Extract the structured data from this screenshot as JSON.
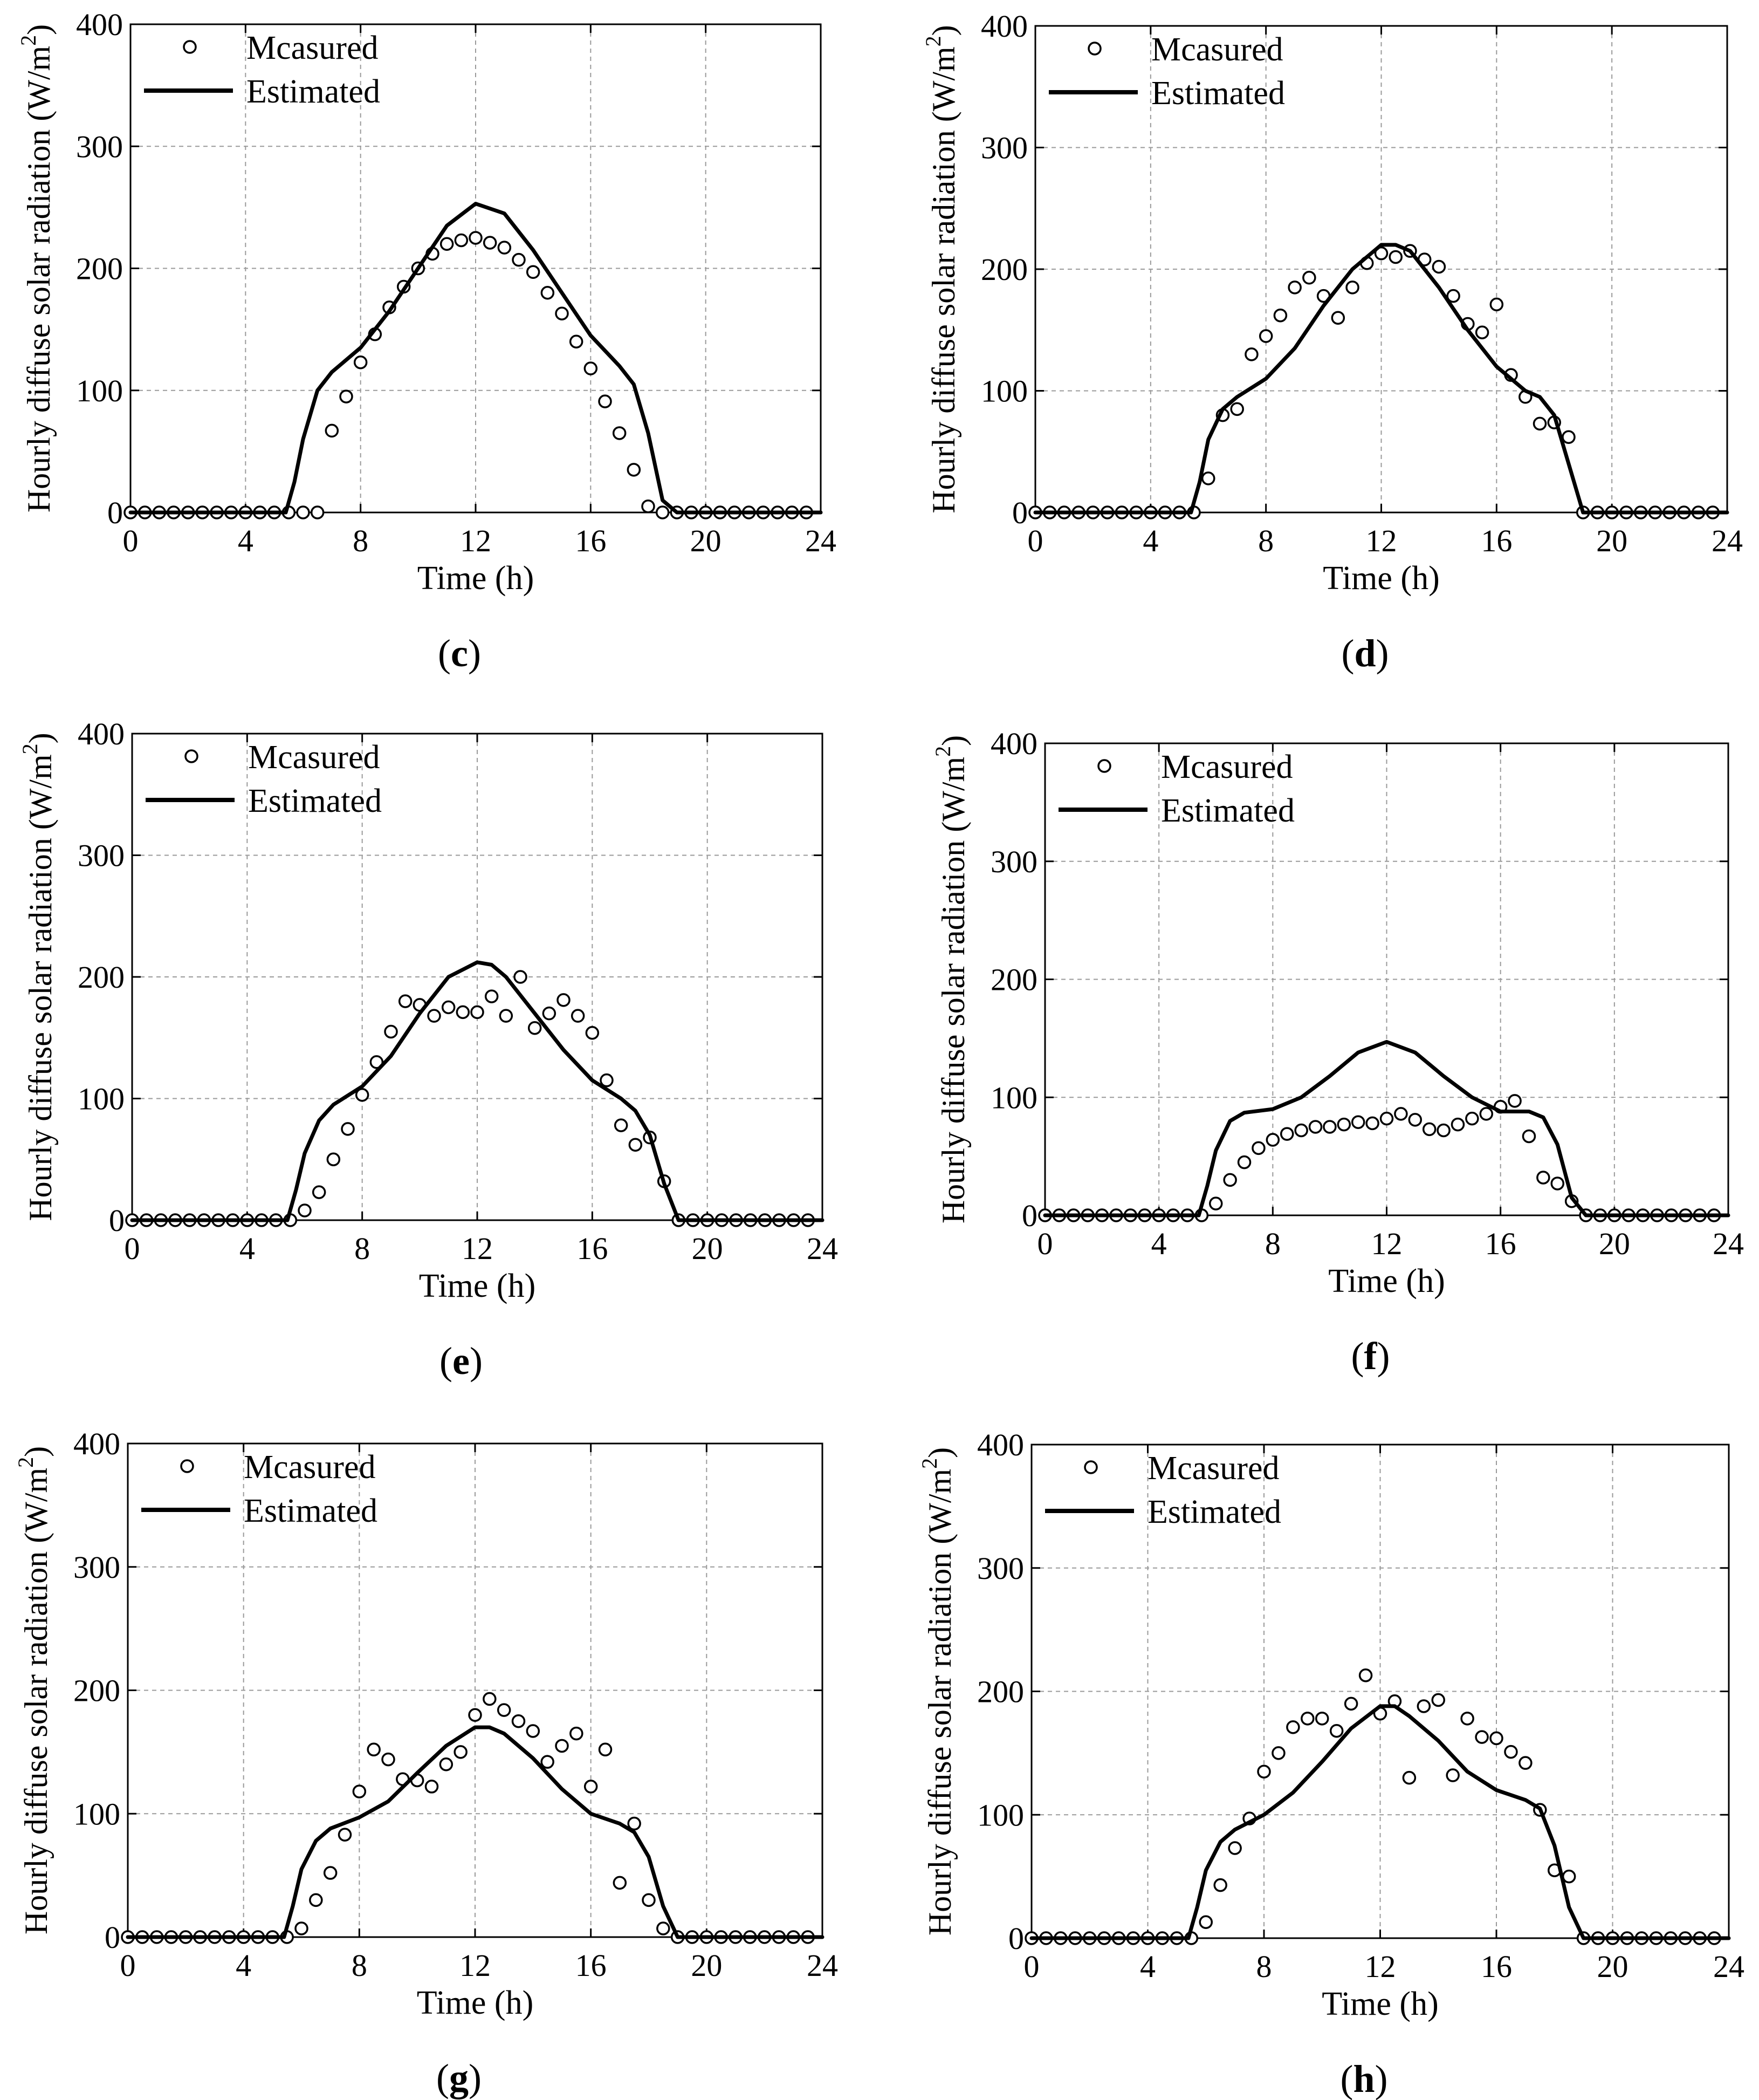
{
  "figure": {
    "legend_measured": "Mcasured",
    "legend_estimated": "Estimated",
    "xlabel": "Time (h)",
    "ylabel": "Hourly diffuse solar radiation (W/m",
    "ylabel_sup": "2",
    "ylabel_close": ")"
  },
  "chart_data": [
    {
      "panel": "c",
      "label": "(c)",
      "type": "scatter+line",
      "xlabel": "Time (h)",
      "ylabel": "Hourly diffuse solar radiation (W/m2)",
      "xlim": [
        0,
        24
      ],
      "ylim": [
        0,
        400
      ],
      "grid": true,
      "legend": "top-left",
      "x_ticks": [
        0,
        4,
        8,
        12,
        16,
        20,
        24
      ],
      "y_ticks": [
        0,
        100,
        200,
        300,
        400
      ],
      "series": [
        {
          "name": "Mcasured",
          "style": "open-circle",
          "x": [
            0,
            0.5,
            1,
            1.5,
            2,
            2.5,
            3,
            3.5,
            4,
            4.5,
            5,
            5.5,
            6,
            6.5,
            7,
            7.5,
            8,
            8.5,
            9,
            9.5,
            10,
            10.5,
            11,
            11.5,
            12,
            12.5,
            13,
            13.5,
            14,
            14.5,
            15,
            15.5,
            16,
            16.5,
            17,
            17.5,
            18,
            18.5,
            19,
            19.5,
            20,
            20.5,
            21,
            21.5,
            22,
            22.5,
            23,
            23.5
          ],
          "y": [
            0,
            0,
            0,
            0,
            0,
            0,
            0,
            0,
            0,
            0,
            0,
            0,
            0,
            0,
            67,
            95,
            123,
            146,
            168,
            185,
            200,
            212,
            220,
            223,
            225,
            221,
            217,
            207,
            197,
            180,
            163,
            140,
            118,
            91,
            65,
            35,
            5,
            0,
            0,
            0,
            0,
            0,
            0,
            0,
            0,
            0,
            0,
            0
          ]
        },
        {
          "name": "Estimated",
          "style": "solid-line",
          "x": [
            0,
            5.4,
            5.7,
            6,
            6.5,
            7,
            8,
            9,
            10,
            11,
            12,
            13,
            14,
            15,
            16,
            17,
            17.5,
            18,
            18.5,
            19,
            24
          ],
          "y": [
            0,
            0,
            25,
            60,
            100,
            115,
            135,
            165,
            200,
            235,
            253,
            245,
            215,
            180,
            145,
            120,
            105,
            65,
            10,
            0,
            0
          ]
        }
      ]
    },
    {
      "panel": "d",
      "label": "(d)",
      "type": "scatter+line",
      "xlabel": "Time (h)",
      "ylabel": "Hourly diffuse solar radiation (W/m2)",
      "xlim": [
        0,
        24
      ],
      "ylim": [
        0,
        400
      ],
      "grid": true,
      "legend": "top-left",
      "x_ticks": [
        0,
        4,
        8,
        12,
        16,
        20,
        24
      ],
      "y_ticks": [
        0,
        100,
        200,
        300,
        400
      ],
      "series": [
        {
          "name": "Mcasured",
          "style": "open-circle",
          "x": [
            0,
            0.5,
            1,
            1.5,
            2,
            2.5,
            3,
            3.5,
            4,
            4.5,
            5,
            5.5,
            6,
            6.5,
            7,
            7.5,
            8,
            8.5,
            9,
            9.5,
            10,
            10.5,
            11,
            11.5,
            12,
            12.5,
            13,
            13.5,
            14,
            14.5,
            15,
            15.5,
            16,
            16.5,
            17,
            17.5,
            18,
            18.5,
            19,
            19.5,
            20,
            20.5,
            21,
            21.5,
            22,
            22.5,
            23,
            23.5
          ],
          "y": [
            0,
            0,
            0,
            0,
            0,
            0,
            0,
            0,
            0,
            0,
            0,
            0,
            28,
            80,
            85,
            130,
            145,
            162,
            185,
            193,
            178,
            160,
            185,
            205,
            213,
            210,
            215,
            208,
            202,
            178,
            155,
            148,
            171,
            113,
            95,
            73,
            74,
            62,
            0,
            0,
            0,
            0,
            0,
            0,
            0,
            0,
            0,
            0
          ]
        },
        {
          "name": "Estimated",
          "style": "solid-line",
          "x": [
            0,
            5.4,
            5.7,
            6,
            6.5,
            7,
            8,
            9,
            10,
            11,
            12,
            12.5,
            13,
            14,
            15,
            16,
            17,
            17.5,
            18,
            18.5,
            19,
            24
          ],
          "y": [
            0,
            0,
            25,
            60,
            85,
            95,
            110,
            135,
            170,
            200,
            220,
            220,
            215,
            185,
            150,
            120,
            100,
            95,
            80,
            40,
            0,
            0
          ]
        }
      ]
    },
    {
      "panel": "e",
      "label": "(e)",
      "type": "scatter+line",
      "xlabel": "Time (h)",
      "ylabel": "Hourly diffuse solar radiation (W/m2)",
      "xlim": [
        0,
        24
      ],
      "ylim": [
        0,
        400
      ],
      "grid": true,
      "legend": "top-left",
      "x_ticks": [
        0,
        4,
        8,
        12,
        16,
        20,
        24
      ],
      "y_ticks": [
        0,
        100,
        200,
        300,
        400
      ],
      "series": [
        {
          "name": "Mcasured",
          "style": "open-circle",
          "x": [
            0,
            0.5,
            1,
            1.5,
            2,
            2.5,
            3,
            3.5,
            4,
            4.5,
            5,
            5.5,
            6,
            6.5,
            7,
            7.5,
            8,
            8.5,
            9,
            9.5,
            10,
            10.5,
            11,
            11.5,
            12,
            12.5,
            13,
            13.5,
            14,
            14.5,
            15,
            15.5,
            16,
            16.5,
            17,
            17.5,
            18,
            18.5,
            19,
            19.5,
            20,
            20.5,
            21,
            21.5,
            22,
            22.5,
            23,
            23.5
          ],
          "y": [
            0,
            0,
            0,
            0,
            0,
            0,
            0,
            0,
            0,
            0,
            0,
            0,
            8,
            23,
            50,
            75,
            103,
            130,
            155,
            180,
            177,
            168,
            175,
            171,
            171,
            184,
            168,
            200,
            158,
            170,
            181,
            168,
            154,
            115,
            78,
            62,
            68,
            32,
            0,
            0,
            0,
            0,
            0,
            0,
            0,
            0,
            0,
            0
          ]
        },
        {
          "name": "Estimated",
          "style": "solid-line",
          "x": [
            0,
            5.4,
            5.7,
            6,
            6.5,
            7,
            8,
            9,
            10,
            11,
            12,
            12.5,
            13,
            14,
            15,
            16,
            17,
            17.5,
            18,
            18.5,
            19,
            24
          ],
          "y": [
            0,
            0,
            25,
            55,
            82,
            95,
            110,
            135,
            170,
            200,
            212,
            210,
            200,
            170,
            140,
            115,
            100,
            90,
            70,
            30,
            0,
            0
          ]
        }
      ]
    },
    {
      "panel": "f",
      "label": "(f)",
      "type": "scatter+line",
      "xlabel": "Time (h)",
      "ylabel": "Hourly diffuse solar radiation (W/m2)",
      "xlim": [
        0,
        24
      ],
      "ylim": [
        0,
        400
      ],
      "grid": true,
      "legend": "top-left",
      "x_ticks": [
        0,
        4,
        8,
        12,
        16,
        20,
        24
      ],
      "y_ticks": [
        0,
        100,
        200,
        300,
        400
      ],
      "series": [
        {
          "name": "Mcasured",
          "style": "open-circle",
          "x": [
            0,
            0.5,
            1,
            1.5,
            2,
            2.5,
            3,
            3.5,
            4,
            4.5,
            5,
            5.5,
            6,
            6.5,
            7,
            7.5,
            8,
            8.5,
            9,
            9.5,
            10,
            10.5,
            11,
            11.5,
            12,
            12.5,
            13,
            13.5,
            14,
            14.5,
            15,
            15.5,
            16,
            16.5,
            17,
            17.5,
            18,
            18.5,
            19,
            19.5,
            20,
            20.5,
            21,
            21.5,
            22,
            22.5,
            23,
            23.5
          ],
          "y": [
            0,
            0,
            0,
            0,
            0,
            0,
            0,
            0,
            0,
            0,
            0,
            0,
            10,
            30,
            45,
            57,
            64,
            69,
            72,
            75,
            75,
            77,
            79,
            78,
            82,
            86,
            81,
            73,
            72,
            77,
            82,
            86,
            92,
            97,
            67,
            32,
            27,
            12,
            0,
            0,
            0,
            0,
            0,
            0,
            0,
            0,
            0,
            0
          ]
        },
        {
          "name": "Estimated",
          "style": "solid-line",
          "x": [
            0,
            5.4,
            5.7,
            6,
            6.5,
            7,
            8,
            9,
            10,
            11,
            12,
            13,
            14,
            15,
            16,
            17,
            17.5,
            18,
            18.5,
            19,
            24
          ],
          "y": [
            0,
            0,
            25,
            55,
            80,
            87,
            90,
            100,
            118,
            138,
            147,
            138,
            118,
            100,
            88,
            88,
            83,
            60,
            15,
            0,
            0
          ]
        }
      ]
    },
    {
      "panel": "g",
      "label": "(g)",
      "type": "scatter+line",
      "xlabel": "Time (h)",
      "ylabel": "Hourly diffuse solar radiation (W/m2)",
      "xlim": [
        0,
        24
      ],
      "ylim": [
        0,
        400
      ],
      "grid": true,
      "legend": "top-left",
      "x_ticks": [
        0,
        4,
        8,
        12,
        16,
        20,
        24
      ],
      "y_ticks": [
        0,
        100,
        200,
        300,
        400
      ],
      "series": [
        {
          "name": "Mcasured",
          "style": "open-circle",
          "x": [
            0,
            0.5,
            1,
            1.5,
            2,
            2.5,
            3,
            3.5,
            4,
            4.5,
            5,
            5.5,
            6,
            6.5,
            7,
            7.5,
            8,
            8.5,
            9,
            9.5,
            10,
            10.5,
            11,
            11.5,
            12,
            12.5,
            13,
            13.5,
            14,
            14.5,
            15,
            15.5,
            16,
            16.5,
            17,
            17.5,
            18,
            18.5,
            19,
            19.5,
            20,
            20.5,
            21,
            21.5,
            22,
            22.5,
            23,
            23.5
          ],
          "y": [
            0,
            0,
            0,
            0,
            0,
            0,
            0,
            0,
            0,
            0,
            0,
            0,
            7,
            30,
            52,
            83,
            118,
            152,
            144,
            128,
            127,
            122,
            140,
            150,
            180,
            193,
            184,
            175,
            167,
            142,
            155,
            165,
            122,
            152,
            44,
            92,
            30,
            7,
            0,
            0,
            0,
            0,
            0,
            0,
            0,
            0,
            0,
            0
          ]
        },
        {
          "name": "Estimated",
          "style": "solid-line",
          "x": [
            0,
            5.4,
            5.7,
            6,
            6.5,
            7,
            8,
            9,
            10,
            11,
            12,
            12.5,
            13,
            14,
            15,
            16,
            17,
            17.5,
            18,
            18.5,
            19,
            24
          ],
          "y": [
            0,
            0,
            25,
            55,
            78,
            88,
            97,
            110,
            133,
            155,
            170,
            170,
            165,
            145,
            120,
            100,
            92,
            85,
            65,
            25,
            0,
            0
          ]
        }
      ]
    },
    {
      "panel": "h",
      "label": "(h)",
      "type": "scatter+line",
      "xlabel": "Time (h)",
      "ylabel": "Hourly diffuse solar radiation (W/m2)",
      "xlim": [
        0,
        24
      ],
      "ylim": [
        0,
        400
      ],
      "grid": true,
      "legend": "top-left",
      "x_ticks": [
        0,
        4,
        8,
        12,
        16,
        20,
        24
      ],
      "y_ticks": [
        0,
        100,
        200,
        300,
        400
      ],
      "series": [
        {
          "name": "Mcasured",
          "style": "open-circle",
          "x": [
            0,
            0.5,
            1,
            1.5,
            2,
            2.5,
            3,
            3.5,
            4,
            4.5,
            5,
            5.5,
            6,
            6.5,
            7,
            7.5,
            8,
            8.5,
            9,
            9.5,
            10,
            10.5,
            11,
            11.5,
            12,
            12.5,
            13,
            13.5,
            14,
            14.5,
            15,
            15.5,
            16,
            16.5,
            17,
            17.5,
            18,
            18.5,
            19,
            19.5,
            20,
            20.5,
            21,
            21.5,
            22,
            22.5,
            23,
            23.5
          ],
          "y": [
            0,
            0,
            0,
            0,
            0,
            0,
            0,
            0,
            0,
            0,
            0,
            0,
            13,
            43,
            73,
            97,
            135,
            150,
            171,
            178,
            178,
            168,
            190,
            213,
            182,
            192,
            130,
            188,
            193,
            132,
            178,
            163,
            162,
            151,
            142,
            104,
            55,
            50,
            0,
            0,
            0,
            0,
            0,
            0,
            0,
            0,
            0,
            0
          ]
        },
        {
          "name": "Estimated",
          "style": "solid-line",
          "x": [
            0,
            5.4,
            5.7,
            6,
            6.5,
            7,
            8,
            9,
            10,
            11,
            12,
            12.5,
            13,
            14,
            15,
            16,
            17,
            17.5,
            18,
            18.5,
            19,
            24
          ],
          "y": [
            0,
            0,
            25,
            55,
            78,
            88,
            100,
            118,
            143,
            170,
            188,
            188,
            180,
            160,
            135,
            120,
            112,
            105,
            75,
            25,
            0,
            0
          ]
        }
      ]
    }
  ]
}
